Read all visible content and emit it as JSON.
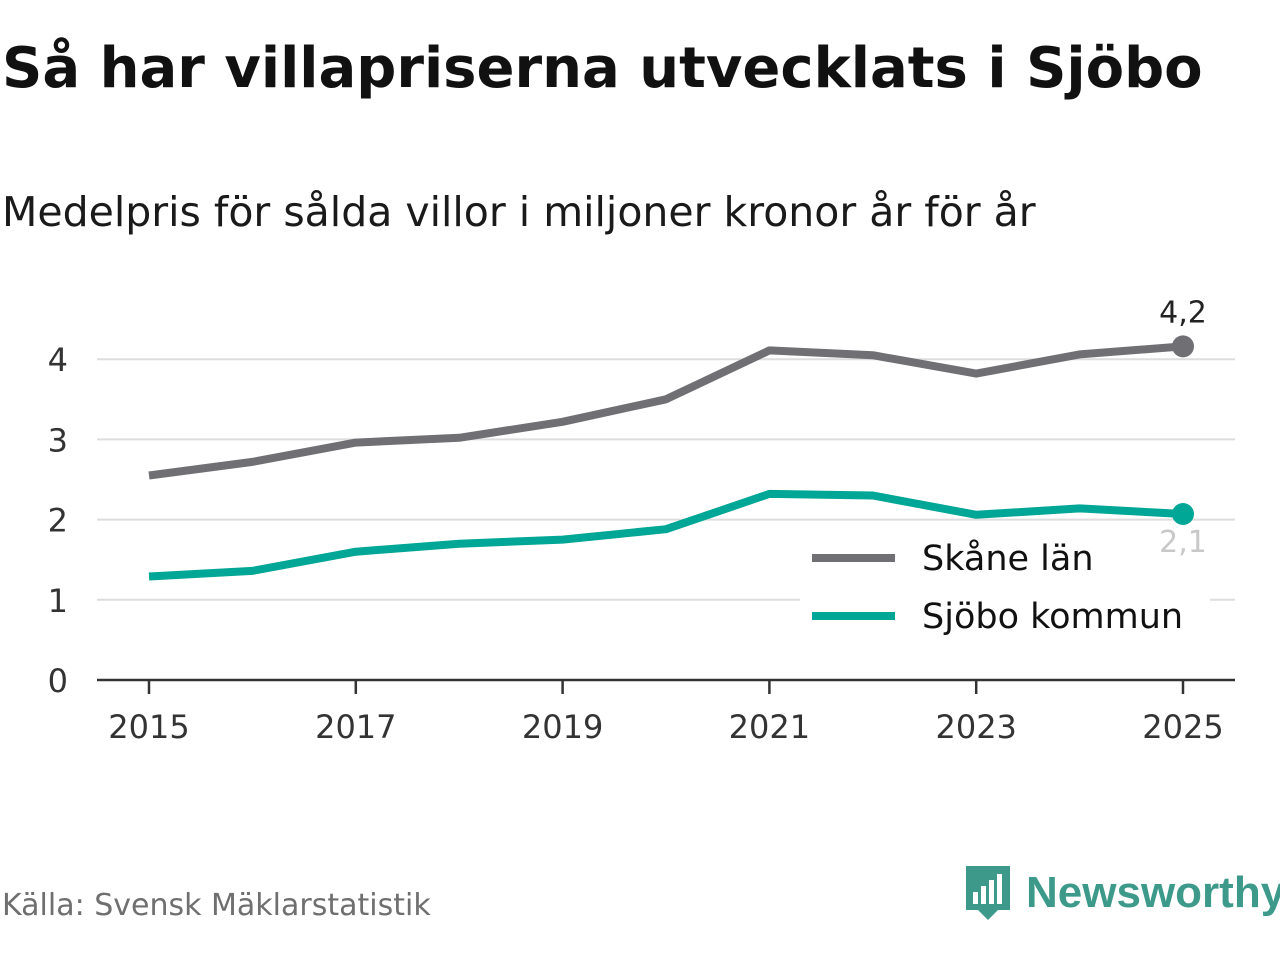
{
  "header": {
    "title": "Så har villapriserna utvecklats i Sjöbo",
    "subtitle": "Medelpris för sålda villor i miljoner kronor år för år"
  },
  "footer": {
    "source": "Källa: Svensk Mäklarstatistik",
    "brand": "Newsworthy",
    "brand_icon": "newsworthy-logo-icon"
  },
  "colors": {
    "skane": "#707074",
    "sjobo": "#00a696",
    "grid": "#dddddd",
    "axis": "#333333",
    "brand": "#3d9a8b"
  },
  "chart_data": {
    "type": "line",
    "title": "Så har villapriserna utvecklats i Sjöbo",
    "subtitle": "Medelpris för sålda villor i miljoner kronor år för år",
    "xlabel": "",
    "ylabel": "",
    "x": [
      2015,
      2016,
      2017,
      2018,
      2019,
      2020,
      2021,
      2022,
      2023,
      2024,
      2025
    ],
    "x_ticks": [
      "2015",
      "2017",
      "2019",
      "2021",
      "2023",
      "2025"
    ],
    "y_ticks": [
      "0",
      "1",
      "2",
      "3",
      "4"
    ],
    "ylim": [
      0,
      4.5
    ],
    "grid": true,
    "legend_position": "bottom-right",
    "series": [
      {
        "name": "Skåne län",
        "color": "#707074",
        "values": [
          2.55,
          2.72,
          2.96,
          3.02,
          3.22,
          3.5,
          4.11,
          4.05,
          3.82,
          4.06,
          4.16
        ],
        "end_label": "4,2"
      },
      {
        "name": "Sjöbo kommun",
        "color": "#00a696",
        "values": [
          1.29,
          1.36,
          1.6,
          1.7,
          1.75,
          1.88,
          2.32,
          2.3,
          2.06,
          2.14,
          2.07
        ],
        "end_label": "2,1"
      }
    ]
  }
}
